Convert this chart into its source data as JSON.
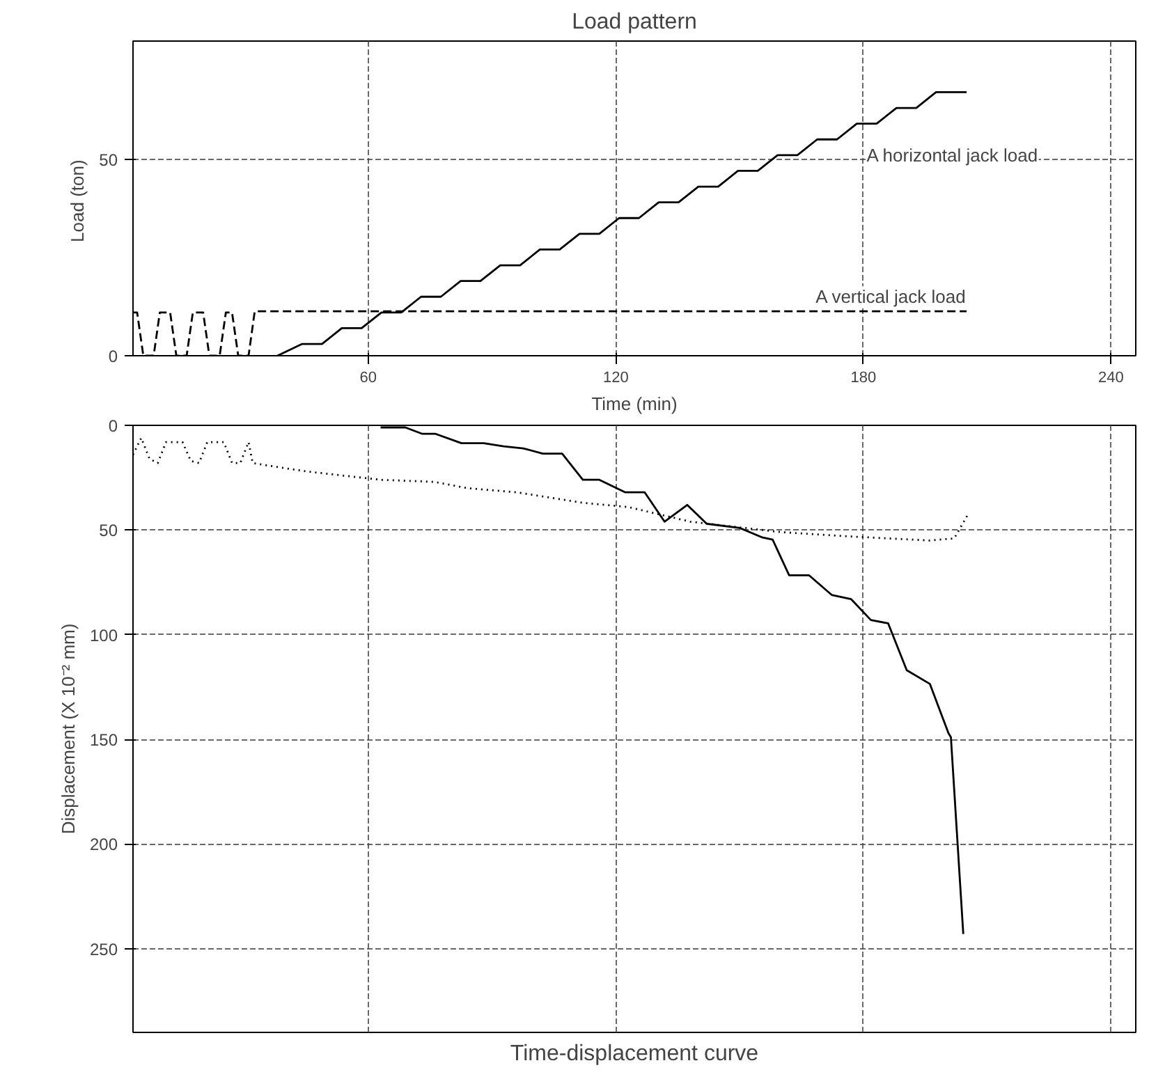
{
  "chart_data": [
    {
      "type": "line",
      "title": "Load pattern",
      "xlabel": "Time (min)",
      "ylabel": "Load  (ton)",
      "xlim": [
        3,
        246
      ],
      "xticks": [
        60,
        120,
        180,
        240
      ],
      "ylim": [
        0,
        80
      ],
      "yticks": [
        0,
        50
      ],
      "grid": true,
      "legend": false,
      "series": [
        {
          "name": "A horizontal jack load",
          "color": "#000000",
          "line_style": "solid",
          "x": [
            38,
            44,
            48.8,
            53.6,
            58.4,
            63.2,
            68,
            72.8,
            77.6,
            82.4,
            87.2,
            92,
            96.8,
            101.6,
            106.4,
            111.2,
            116,
            120.8,
            125.6,
            130.4,
            135.2,
            140,
            144.8,
            149.6,
            154.4,
            159.2,
            164,
            168.8,
            173.6,
            178.4,
            183.2,
            188,
            192.8,
            197.6,
            205
          ],
          "values": [
            0,
            3,
            3,
            7,
            7,
            11,
            11,
            15,
            15,
            19,
            19,
            23,
            23,
            27,
            27,
            31,
            31,
            35,
            35,
            39,
            39,
            43,
            43,
            47,
            47,
            51,
            51,
            55,
            55,
            59,
            59,
            63,
            63,
            67,
            67
          ]
        },
        {
          "name": "A vertical jack load",
          "color": "#000000",
          "line_style": "dashed",
          "x": [
            3,
            4,
            5.5,
            8,
            9.5,
            12,
            13.5,
            16,
            17.5,
            20,
            21.5,
            24,
            25.5,
            27,
            28.5,
            31,
            32.5,
            205
          ],
          "values": [
            11,
            11,
            0,
            0,
            11,
            11,
            0,
            0,
            11,
            11,
            0,
            0,
            11,
            11,
            0,
            0,
            11.3,
            11.3
          ]
        }
      ]
    },
    {
      "type": "line",
      "title": "Time-displacement curve",
      "ylabel": "Displacement (X 10⁻² mm)",
      "xlim": [
        3,
        246
      ],
      "xticks": [
        60,
        120,
        180,
        240
      ],
      "ylim": [
        290,
        0
      ],
      "yticks": [
        0,
        50,
        100,
        150,
        200,
        250
      ],
      "grid": true,
      "legend": false,
      "tick_labels": "y",
      "series": [
        {
          "color": "#000000",
          "line_style": "solid",
          "x": [
            63,
            69,
            73,
            76.2,
            82.6,
            88,
            92.8,
            97.6,
            102.3,
            107,
            112,
            116,
            122.3,
            127,
            131.8,
            137.3,
            142,
            150,
            155.6,
            158,
            162,
            166.8,
            172.3,
            177,
            181.8,
            186,
            190.5,
            196.1,
            200.6,
            201.2,
            204.2
          ],
          "values": [
            1,
            1,
            4,
            4,
            8.5,
            8.5,
            10,
            11,
            13.5,
            13.5,
            26,
            26,
            32,
            32,
            46,
            38,
            47,
            49,
            53.6,
            54.6,
            71.6,
            71.6,
            81,
            83,
            93,
            94.6,
            117,
            123.5,
            147,
            149,
            243
          ]
        },
        {
          "color": "#000000",
          "line_style": "dotted",
          "x": [
            3,
            5,
            7,
            9,
            11,
            15,
            17,
            19,
            21,
            25,
            27,
            29,
            31,
            32,
            35,
            45,
            63,
            76,
            84,
            96,
            112,
            123,
            138,
            160,
            176,
            196,
            202,
            205.5
          ],
          "values": [
            14,
            6,
            16,
            18,
            8,
            8,
            17,
            18,
            8,
            8,
            18,
            18,
            8,
            18,
            19,
            22,
            26,
            27,
            30,
            32,
            37,
            39,
            46,
            51,
            53,
            55,
            54,
            42
          ]
        }
      ]
    }
  ]
}
